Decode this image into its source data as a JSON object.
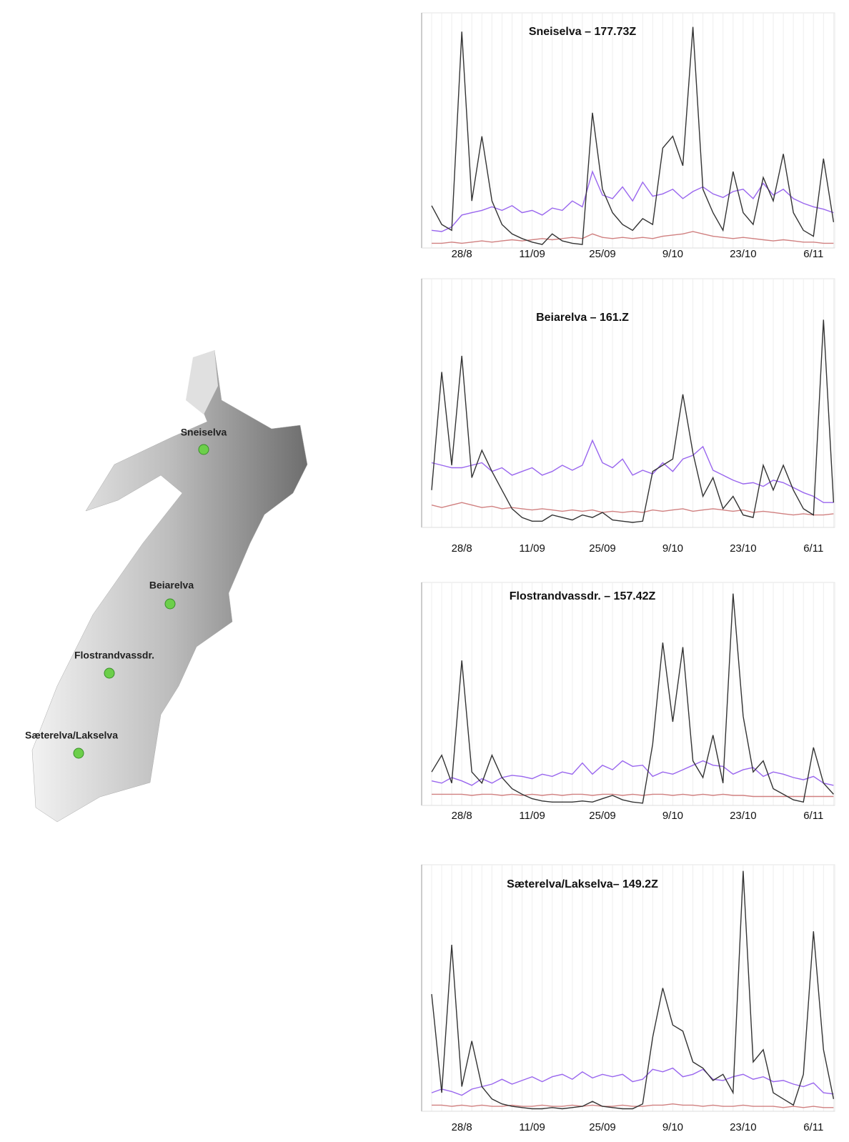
{
  "map": {
    "stations": [
      {
        "label": "Sneiselva"
      },
      {
        "label": "Beiarelva"
      },
      {
        "label": "Flostrandvassdr."
      },
      {
        "label": "Sæterelva/Lakselva"
      }
    ]
  },
  "chart_data": [
    {
      "type": "line",
      "title": "Sneiselva – 177.73Z",
      "categories": [
        null,
        null,
        null,
        "28/8",
        null,
        null,
        null,
        null,
        null,
        null,
        "11/09",
        null,
        null,
        null,
        null,
        null,
        null,
        "25/09",
        null,
        null,
        null,
        null,
        null,
        null,
        "9/10",
        null,
        null,
        null,
        null,
        null,
        null,
        "23/10",
        null,
        null,
        null,
        null,
        null,
        null,
        "6/11",
        null,
        null
      ],
      "ylim": [
        0,
        20
      ],
      "series": [
        {
          "color": "#333333",
          "values": [
            3.6,
            2.0,
            1.5,
            18.4,
            4,
            9.5,
            4,
            2,
            1.2,
            0.8,
            0.5,
            0.3,
            1.2,
            0.6,
            0.4,
            0.3,
            11.5,
            5,
            3,
            2,
            1.5,
            2.5,
            2,
            8.5,
            9.5,
            7,
            18.8,
            5,
            3,
            1.5,
            6.5,
            3,
            2,
            6,
            4,
            8,
            3,
            1.5,
            1,
            7.6,
            2.2
          ]
        },
        {
          "color": "#9966ee",
          "values": [
            1.5,
            1.4,
            1.8,
            2.8,
            3,
            3.2,
            3.5,
            3.2,
            3.6,
            3,
            3.2,
            2.8,
            3.4,
            3.2,
            4,
            3.5,
            6.5,
            4.5,
            4.2,
            5.2,
            4,
            5.6,
            4.4,
            4.6,
            5,
            4.2,
            4.8,
            5.2,
            4.6,
            4.3,
            4.8,
            5,
            4.2,
            5.5,
            4.5,
            5,
            4.2,
            3.8,
            3.5,
            3.3,
            3
          ]
        },
        {
          "color": "#d08080",
          "values": [
            0.4,
            0.4,
            0.5,
            0.4,
            0.5,
            0.6,
            0.5,
            0.6,
            0.7,
            0.6,
            0.7,
            0.8,
            0.7,
            0.8,
            0.9,
            0.8,
            1.2,
            0.9,
            0.8,
            0.9,
            0.8,
            0.9,
            0.8,
            1,
            1.1,
            1.2,
            1.4,
            1.2,
            1,
            0.9,
            0.8,
            0.9,
            0.8,
            0.7,
            0.6,
            0.7,
            0.6,
            0.5,
            0.5,
            0.4,
            0.4
          ]
        }
      ]
    },
    {
      "type": "line",
      "title": "Beiarelva – 161.Z",
      "categories": [
        null,
        null,
        null,
        "28/8",
        null,
        null,
        null,
        null,
        null,
        null,
        "11/09",
        null,
        null,
        null,
        null,
        null,
        null,
        "25/09",
        null,
        null,
        null,
        null,
        null,
        null,
        "9/10",
        null,
        null,
        null,
        null,
        null,
        null,
        "23/10",
        null,
        null,
        null,
        null,
        null,
        null,
        "6/11",
        null,
        null
      ],
      "ylim": [
        0,
        20
      ],
      "series": [
        {
          "color": "#333333",
          "values": [
            3,
            12.5,
            5,
            13.8,
            4,
            6.2,
            4.5,
            3,
            1.5,
            0.8,
            0.5,
            0.5,
            1,
            0.8,
            0.6,
            1,
            0.8,
            1.2,
            0.6,
            0.5,
            0.4,
            0.5,
            4.5,
            5,
            5.5,
            10.7,
            6,
            2.5,
            4,
            1.5,
            2.5,
            1,
            0.8,
            5,
            3,
            5,
            3,
            1.5,
            1,
            16.7,
            2
          ]
        },
        {
          "color": "#9966ee",
          "values": [
            5.2,
            5,
            4.8,
            4.8,
            5,
            5.2,
            4.5,
            4.8,
            4.2,
            4.5,
            4.8,
            4.2,
            4.5,
            5,
            4.6,
            5,
            7,
            5.2,
            4.8,
            5.5,
            4.2,
            4.6,
            4.3,
            5.2,
            4.5,
            5.5,
            5.8,
            6.5,
            4.6,
            4.2,
            3.8,
            3.5,
            3.6,
            3.3,
            3.8,
            3.6,
            3.2,
            2.8,
            2.5,
            2,
            2
          ]
        },
        {
          "color": "#d08080",
          "values": [
            1.8,
            1.6,
            1.8,
            2,
            1.8,
            1.6,
            1.7,
            1.5,
            1.6,
            1.5,
            1.4,
            1.5,
            1.4,
            1.3,
            1.4,
            1.3,
            1.4,
            1.2,
            1.3,
            1.2,
            1.3,
            1.2,
            1.4,
            1.3,
            1.4,
            1.5,
            1.3,
            1.4,
            1.5,
            1.4,
            1.3,
            1.4,
            1.2,
            1.3,
            1.2,
            1.1,
            1.0,
            1.1,
            1.0,
            1.0,
            1.1
          ]
        }
      ]
    },
    {
      "type": "line",
      "title": "Flostrandvassdr. – 157.42Z",
      "categories": [
        null,
        null,
        null,
        "28/8",
        null,
        null,
        null,
        null,
        null,
        null,
        "11/09",
        null,
        null,
        null,
        null,
        null,
        null,
        "25/09",
        null,
        null,
        null,
        null,
        null,
        null,
        "9/10",
        null,
        null,
        null,
        null,
        null,
        null,
        "23/10",
        null,
        null,
        null,
        null,
        null,
        null,
        "6/11",
        null,
        null
      ],
      "ylim": [
        0,
        20
      ],
      "series": [
        {
          "color": "#333333",
          "values": [
            3,
            4.5,
            2,
            13,
            3,
            2,
            4.5,
            2.5,
            1.5,
            1,
            0.6,
            0.4,
            0.3,
            0.3,
            0.3,
            0.4,
            0.3,
            0.6,
            0.9,
            0.5,
            0.3,
            0.2,
            5.5,
            14.6,
            7.5,
            14.2,
            4,
            2.5,
            6.3,
            2,
            19,
            8,
            3,
            4,
            1.5,
            1,
            0.5,
            0.3,
            5.2,
            2,
            1
          ]
        },
        {
          "color": "#9966ee",
          "values": [
            2.2,
            2,
            2.5,
            2.2,
            1.8,
            2.4,
            2,
            2.5,
            2.7,
            2.6,
            2.4,
            2.8,
            2.6,
            3,
            2.8,
            3.8,
            2.8,
            3.6,
            3.2,
            4,
            3.5,
            3.6,
            2.6,
            3,
            2.8,
            3.2,
            3.6,
            4,
            3.6,
            3.5,
            2.8,
            3.2,
            3.4,
            2.6,
            3,
            2.8,
            2.5,
            2.3,
            2.6,
            2,
            1.8
          ]
        },
        {
          "color": "#d08080",
          "values": [
            1,
            1,
            1,
            1,
            0.9,
            1,
            1,
            0.9,
            1,
            0.9,
            1,
            0.9,
            1,
            0.9,
            1,
            1,
            0.9,
            1,
            1,
            0.9,
            1,
            0.9,
            1,
            1,
            0.9,
            1,
            0.9,
            1,
            0.9,
            1,
            0.9,
            0.9,
            0.8,
            0.8,
            0.8,
            0.8,
            0.8,
            0.8,
            0.8,
            0.8,
            0.8
          ]
        }
      ]
    },
    {
      "type": "line",
      "title": "Sæterelva/Lakselva– 149.2Z",
      "categories": [
        null,
        null,
        null,
        "28/8",
        null,
        null,
        null,
        null,
        null,
        null,
        "11/09",
        null,
        null,
        null,
        null,
        null,
        null,
        "25/09",
        null,
        null,
        null,
        null,
        null,
        null,
        "9/10",
        null,
        null,
        null,
        null,
        null,
        null,
        "23/10",
        null,
        null,
        null,
        null,
        null,
        null,
        "6/11",
        null,
        null
      ],
      "ylim": [
        0,
        20
      ],
      "series": [
        {
          "color": "#333333",
          "values": [
            9.5,
            1.5,
            13.5,
            2,
            5.7,
            2,
            1,
            0.6,
            0.4,
            0.3,
            0.2,
            0.2,
            0.3,
            0.2,
            0.3,
            0.4,
            0.8,
            0.4,
            0.3,
            0.2,
            0.2,
            0.6,
            6,
            10,
            7,
            6.5,
            4,
            3.5,
            2.5,
            3,
            1.5,
            19.5,
            4,
            5,
            1.5,
            1,
            0.5,
            3,
            14.6,
            5,
            1
          ]
        },
        {
          "color": "#9966ee",
          "values": [
            1.5,
            1.8,
            1.6,
            1.3,
            1.8,
            2,
            2.2,
            2.6,
            2.2,
            2.5,
            2.8,
            2.4,
            2.8,
            3,
            2.6,
            3.2,
            2.7,
            3,
            2.8,
            3,
            2.4,
            2.6,
            3.4,
            3.2,
            3.5,
            2.8,
            3,
            3.4,
            2.6,
            2.5,
            2.8,
            3,
            2.6,
            2.8,
            2.4,
            2.5,
            2.2,
            2,
            2.3,
            1.5,
            1.4
          ]
        },
        {
          "color": "#d08080",
          "values": [
            0.5,
            0.5,
            0.4,
            0.5,
            0.4,
            0.5,
            0.4,
            0.4,
            0.5,
            0.4,
            0.4,
            0.5,
            0.4,
            0.4,
            0.5,
            0.4,
            0.5,
            0.4,
            0.4,
            0.5,
            0.4,
            0.4,
            0.5,
            0.5,
            0.6,
            0.5,
            0.5,
            0.4,
            0.5,
            0.4,
            0.4,
            0.5,
            0.4,
            0.4,
            0.4,
            0.3,
            0.4,
            0.3,
            0.4,
            0.3,
            0.3
          ]
        }
      ]
    }
  ]
}
